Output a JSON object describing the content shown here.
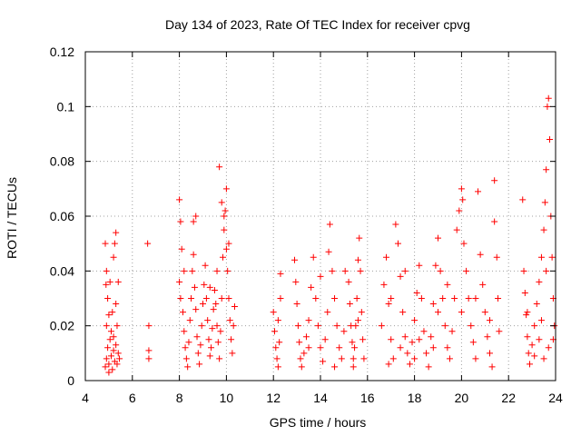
{
  "chart_data": {
    "type": "scatter",
    "title": "Day 134 of 2023, Rate Of TEC Index for receiver cpvg",
    "xlabel": "GPS time / hours",
    "ylabel": "ROTI / TECUs",
    "xlim": [
      4,
      24
    ],
    "ylim": [
      0,
      0.12
    ],
    "x_ticks": [
      4,
      6,
      8,
      10,
      12,
      14,
      16,
      18,
      20,
      22,
      24
    ],
    "x_tick_labels": [
      "4",
      "6",
      "8",
      "10",
      "12",
      "14",
      "16",
      "18",
      "20",
      "22",
      "24"
    ],
    "y_ticks": [
      0,
      0.02,
      0.04,
      0.06,
      0.08,
      0.1,
      0.12
    ],
    "y_tick_labels": [
      "0",
      "0.02",
      "0.04",
      "0.06",
      "0.08",
      "0.1",
      "0.12"
    ],
    "grid": true,
    "marker": "+",
    "color": "#ff0000",
    "series": [
      {
        "points": [
          [
            4.85,
            0.005
          ],
          [
            4.9,
            0.008
          ],
          [
            4.95,
            0.012
          ],
          [
            5.0,
            0.006
          ],
          [
            5.05,
            0.015
          ],
          [
            5.1,
            0.009
          ],
          [
            5.15,
            0.004
          ],
          [
            5.2,
            0.011
          ],
          [
            5.25,
            0.007
          ],
          [
            5.3,
            0.013
          ],
          [
            5.35,
            0.006
          ],
          [
            5.4,
            0.01
          ],
          [
            4.9,
            0.02
          ],
          [
            5.0,
            0.024
          ],
          [
            5.1,
            0.018
          ],
          [
            4.95,
            0.03
          ],
          [
            5.05,
            0.036
          ],
          [
            4.9,
            0.04
          ],
          [
            4.85,
            0.05
          ],
          [
            5.3,
            0.054
          ],
          [
            5.25,
            0.05
          ],
          [
            5.2,
            0.045
          ],
          [
            5.4,
            0.036
          ],
          [
            5.3,
            0.028
          ],
          [
            5.0,
            0.003
          ],
          [
            5.2,
            0.016
          ],
          [
            5.35,
            0.02
          ],
          [
            4.88,
            0.035
          ],
          [
            5.15,
            0.025
          ],
          [
            5.45,
            0.008
          ],
          [
            6.65,
            0.05
          ],
          [
            6.7,
            0.02
          ],
          [
            6.7,
            0.011
          ],
          [
            6.7,
            0.008
          ],
          [
            8.0,
            0.066
          ],
          [
            8.05,
            0.058
          ],
          [
            8.1,
            0.048
          ],
          [
            8.0,
            0.036
          ],
          [
            8.05,
            0.03
          ],
          [
            8.15,
            0.025
          ],
          [
            8.2,
            0.018
          ],
          [
            8.25,
            0.012
          ],
          [
            8.3,
            0.008
          ],
          [
            8.35,
            0.005
          ],
          [
            8.4,
            0.014
          ],
          [
            8.45,
            0.022
          ],
          [
            8.5,
            0.03
          ],
          [
            8.55,
            0.04
          ],
          [
            8.6,
            0.046
          ],
          [
            8.65,
            0.034
          ],
          [
            8.7,
            0.026
          ],
          [
            8.75,
            0.016
          ],
          [
            8.8,
            0.01
          ],
          [
            8.85,
            0.006
          ],
          [
            8.9,
            0.013
          ],
          [
            8.95,
            0.02
          ],
          [
            9.0,
            0.028
          ],
          [
            9.05,
            0.035
          ],
          [
            9.1,
            0.042
          ],
          [
            9.15,
            0.03
          ],
          [
            9.2,
            0.022
          ],
          [
            9.25,
            0.015
          ],
          [
            9.3,
            0.009
          ],
          [
            9.35,
            0.012
          ],
          [
            9.4,
            0.019
          ],
          [
            9.45,
            0.026
          ],
          [
            9.5,
            0.033
          ],
          [
            9.55,
            0.028
          ],
          [
            9.6,
            0.02
          ],
          [
            9.65,
            0.014
          ],
          [
            9.7,
            0.008
          ],
          [
            9.75,
            0.018
          ],
          [
            9.8,
            0.03
          ],
          [
            9.85,
            0.045
          ],
          [
            9.9,
            0.055
          ],
          [
            9.7,
            0.078
          ],
          [
            9.8,
            0.065
          ],
          [
            9.9,
            0.06
          ],
          [
            9.95,
            0.062
          ],
          [
            10.0,
            0.07
          ],
          [
            10.0,
            0.048
          ],
          [
            10.05,
            0.04
          ],
          [
            10.1,
            0.03
          ],
          [
            10.15,
            0.022
          ],
          [
            10.2,
            0.015
          ],
          [
            10.25,
            0.01
          ],
          [
            10.3,
            0.02
          ],
          [
            10.35,
            0.027
          ],
          [
            8.6,
            0.058
          ],
          [
            8.7,
            0.06
          ],
          [
            9.3,
            0.034
          ],
          [
            9.6,
            0.04
          ],
          [
            10.1,
            0.05
          ],
          [
            8.2,
            0.04
          ],
          [
            12.0,
            0.025
          ],
          [
            12.05,
            0.018
          ],
          [
            12.1,
            0.012
          ],
          [
            12.15,
            0.008
          ],
          [
            12.2,
            0.005
          ],
          [
            12.25,
            0.014
          ],
          [
            12.3,
            0.03
          ],
          [
            12.3,
            0.039
          ],
          [
            12.2,
            0.022
          ],
          [
            12.9,
            0.044
          ],
          [
            12.95,
            0.036
          ],
          [
            13.0,
            0.028
          ],
          [
            13.05,
            0.02
          ],
          [
            13.1,
            0.014
          ],
          [
            13.15,
            0.008
          ],
          [
            13.2,
            0.005
          ],
          [
            13.3,
            0.01
          ],
          [
            13.4,
            0.016
          ],
          [
            13.5,
            0.022
          ],
          [
            13.6,
            0.034
          ],
          [
            13.7,
            0.045
          ],
          [
            13.8,
            0.03
          ],
          [
            13.9,
            0.02
          ],
          [
            14.0,
            0.012
          ],
          [
            14.1,
            0.007
          ],
          [
            14.2,
            0.015
          ],
          [
            14.3,
            0.025
          ],
          [
            14.35,
            0.047
          ],
          [
            14.4,
            0.057
          ],
          [
            14.5,
            0.04
          ],
          [
            14.6,
            0.03
          ],
          [
            14.7,
            0.02
          ],
          [
            14.8,
            0.012
          ],
          [
            14.9,
            0.008
          ],
          [
            15.0,
            0.018
          ],
          [
            15.05,
            0.04
          ],
          [
            14.0,
            0.038
          ],
          [
            13.5,
            0.012
          ],
          [
            14.6,
            0.005
          ],
          [
            15.2,
            0.036
          ],
          [
            15.25,
            0.028
          ],
          [
            15.3,
            0.02
          ],
          [
            15.35,
            0.014
          ],
          [
            15.4,
            0.008
          ],
          [
            15.45,
            0.012
          ],
          [
            15.5,
            0.02
          ],
          [
            15.55,
            0.03
          ],
          [
            15.6,
            0.044
          ],
          [
            15.65,
            0.052
          ],
          [
            15.7,
            0.04
          ],
          [
            15.75,
            0.025
          ],
          [
            15.8,
            0.015
          ],
          [
            15.85,
            0.008
          ],
          [
            15.6,
            0.022
          ],
          [
            15.4,
            0.005
          ],
          [
            16.6,
            0.02
          ],
          [
            16.7,
            0.035
          ],
          [
            16.8,
            0.045
          ],
          [
            16.9,
            0.028
          ],
          [
            17.0,
            0.015
          ],
          [
            17.1,
            0.008
          ],
          [
            17.2,
            0.057
          ],
          [
            17.3,
            0.05
          ],
          [
            17.4,
            0.038
          ],
          [
            17.5,
            0.025
          ],
          [
            17.6,
            0.016
          ],
          [
            17.7,
            0.01
          ],
          [
            17.8,
            0.006
          ],
          [
            17.9,
            0.014
          ],
          [
            18.0,
            0.022
          ],
          [
            18.1,
            0.032
          ],
          [
            18.2,
            0.042
          ],
          [
            18.3,
            0.03
          ],
          [
            18.4,
            0.018
          ],
          [
            18.5,
            0.01
          ],
          [
            18.6,
            0.005
          ],
          [
            18.7,
            0.016
          ],
          [
            18.8,
            0.028
          ],
          [
            18.9,
            0.042
          ],
          [
            19.0,
            0.052
          ],
          [
            19.1,
            0.04
          ],
          [
            19.2,
            0.03
          ],
          [
            19.3,
            0.02
          ],
          [
            19.4,
            0.012
          ],
          [
            19.5,
            0.008
          ],
          [
            19.6,
            0.018
          ],
          [
            19.7,
            0.03
          ],
          [
            19.8,
            0.055
          ],
          [
            19.9,
            0.062
          ],
          [
            20.0,
            0.07
          ],
          [
            20.05,
            0.066
          ],
          [
            20.1,
            0.05
          ],
          [
            20.2,
            0.04
          ],
          [
            20.3,
            0.03
          ],
          [
            20.4,
            0.02
          ],
          [
            20.5,
            0.014
          ],
          [
            20.6,
            0.008
          ],
          [
            20.7,
            0.069
          ],
          [
            20.8,
            0.046
          ],
          [
            20.9,
            0.035
          ],
          [
            21.0,
            0.025
          ],
          [
            21.1,
            0.016
          ],
          [
            21.2,
            0.01
          ],
          [
            21.3,
            0.005
          ],
          [
            21.4,
            0.073
          ],
          [
            21.4,
            0.058
          ],
          [
            21.5,
            0.045
          ],
          [
            21.55,
            0.03
          ],
          [
            21.6,
            0.018
          ],
          [
            17.0,
            0.03
          ],
          [
            17.6,
            0.04
          ],
          [
            18.2,
            0.015
          ],
          [
            18.8,
            0.012
          ],
          [
            19.4,
            0.035
          ],
          [
            20.0,
            0.025
          ],
          [
            20.6,
            0.03
          ],
          [
            21.2,
            0.022
          ],
          [
            19.0,
            0.025
          ],
          [
            18.0,
            0.008
          ],
          [
            17.4,
            0.012
          ],
          [
            16.9,
            0.006
          ],
          [
            22.6,
            0.066
          ],
          [
            22.65,
            0.04
          ],
          [
            22.7,
            0.032
          ],
          [
            22.75,
            0.024
          ],
          [
            22.8,
            0.016
          ],
          [
            22.85,
            0.01
          ],
          [
            22.9,
            0.006
          ],
          [
            23.0,
            0.013
          ],
          [
            23.1,
            0.02
          ],
          [
            23.2,
            0.028
          ],
          [
            23.3,
            0.036
          ],
          [
            23.4,
            0.045
          ],
          [
            23.5,
            0.055
          ],
          [
            23.55,
            0.065
          ],
          [
            23.6,
            0.077
          ],
          [
            23.65,
            0.1
          ],
          [
            23.7,
            0.103
          ],
          [
            23.75,
            0.088
          ],
          [
            23.8,
            0.06
          ],
          [
            23.85,
            0.045
          ],
          [
            23.9,
            0.03
          ],
          [
            23.95,
            0.02
          ],
          [
            23.7,
            0.012
          ],
          [
            23.5,
            0.008
          ],
          [
            23.3,
            0.015
          ],
          [
            23.1,
            0.009
          ],
          [
            22.8,
            0.025
          ],
          [
            23.6,
            0.04
          ],
          [
            23.9,
            0.015
          ],
          [
            23.4,
            0.022
          ]
        ]
      }
    ]
  }
}
